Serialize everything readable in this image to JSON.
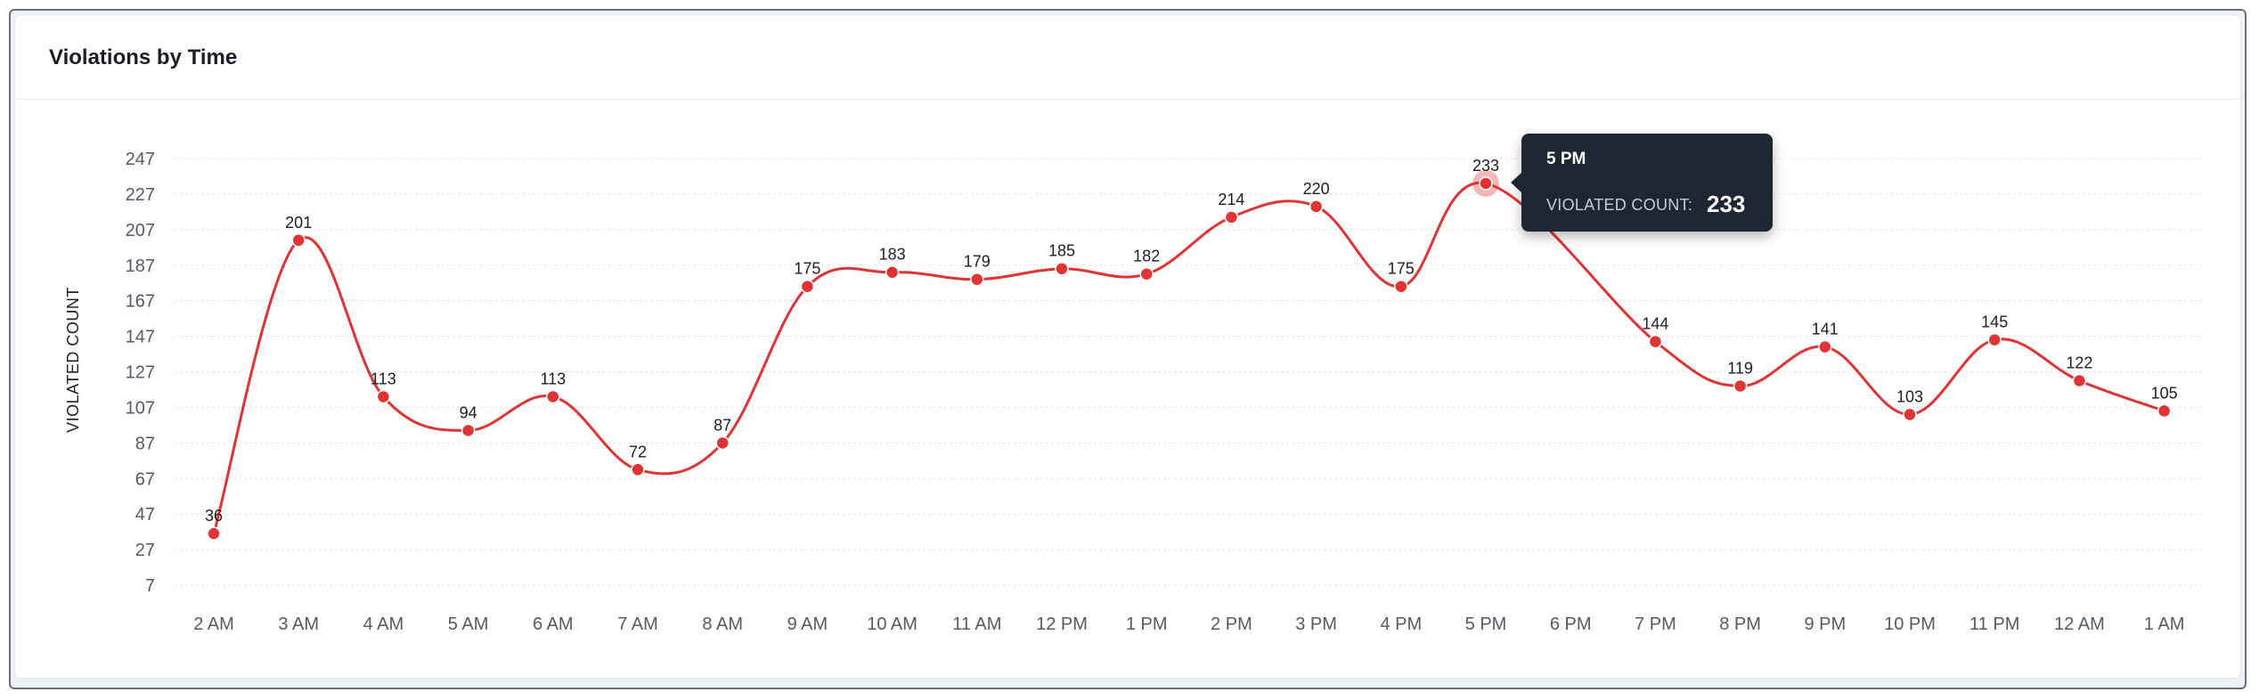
{
  "card": {
    "title": "Violations by Time"
  },
  "tooltip": {
    "title": "5 PM",
    "label": "VIOLATED COUNT:",
    "value": "233"
  },
  "chart_data": {
    "type": "line",
    "title": "Violations by Time",
    "xlabel": "",
    "ylabel": "VIOLATED COUNT",
    "categories": [
      "2 AM",
      "3 AM",
      "4 AM",
      "5 AM",
      "6 AM",
      "7 AM",
      "8 AM",
      "9 AM",
      "10 AM",
      "11 AM",
      "12 PM",
      "1 PM",
      "2 PM",
      "3 PM",
      "4 PM",
      "5 PM",
      "6 PM",
      "7 PM",
      "8 PM",
      "9 PM",
      "10 PM",
      "11 PM",
      "12 AM",
      "1 AM"
    ],
    "series": [
      {
        "values": [
          36,
          201,
          113,
          94,
          113,
          72,
          87,
          175,
          183,
          179,
          185,
          182,
          214,
          220,
          175,
          233,
          null,
          144,
          119,
          141,
          103,
          145,
          122,
          105
        ],
        "color": "#e03434"
      }
    ],
    "yticks": [
      7,
      27,
      47,
      67,
      87,
      107,
      127,
      147,
      167,
      187,
      207,
      227,
      247
    ],
    "ylim": [
      7,
      247
    ],
    "grid": true,
    "highlighted_category": "5 PM",
    "legend": "none"
  }
}
